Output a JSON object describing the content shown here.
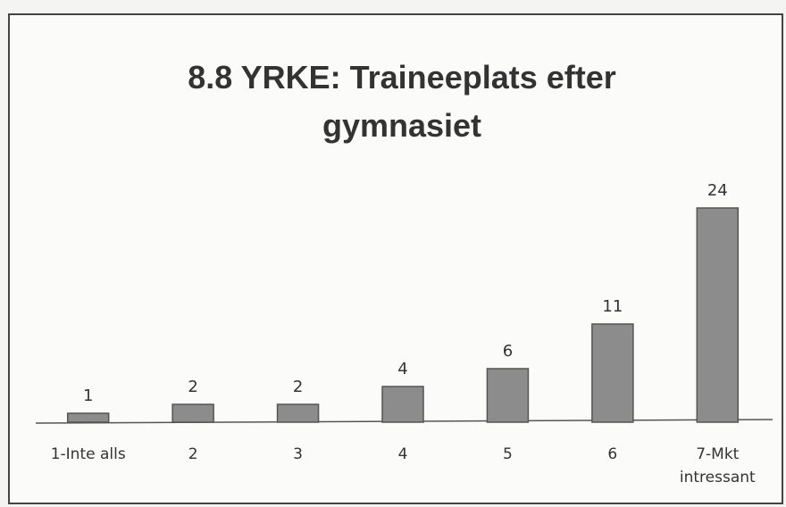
{
  "chart_data": {
    "type": "bar",
    "title": "8.8 YRKE: Traineeplats efter gymnasiet",
    "categories": [
      "1-Inte alls",
      "2",
      "3",
      "4",
      "5",
      "6",
      "7-Mkt intressant"
    ],
    "values": [
      1,
      2,
      2,
      4,
      6,
      11,
      24
    ],
    "color": "#8c8c8c"
  }
}
